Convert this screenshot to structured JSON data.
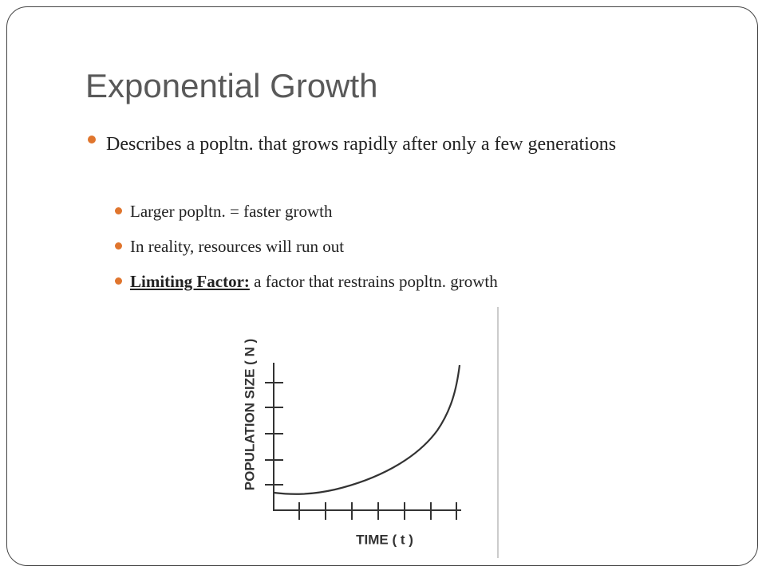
{
  "title": "Exponential Growth",
  "bullets": [
    {
      "text": "Describes a popltn. that grows rapidly after only a few generations",
      "subbullets": [
        "Larger popltn. = faster growth",
        "In reality, resources will run out",
        {
          "term": "Limiting Factor:",
          "definition": "a factor that restrains popltn. growth"
        }
      ]
    }
  ],
  "diagram": {
    "y_label": "POPULATION SIZE ( N )",
    "x_label": "TIME ( t )"
  }
}
